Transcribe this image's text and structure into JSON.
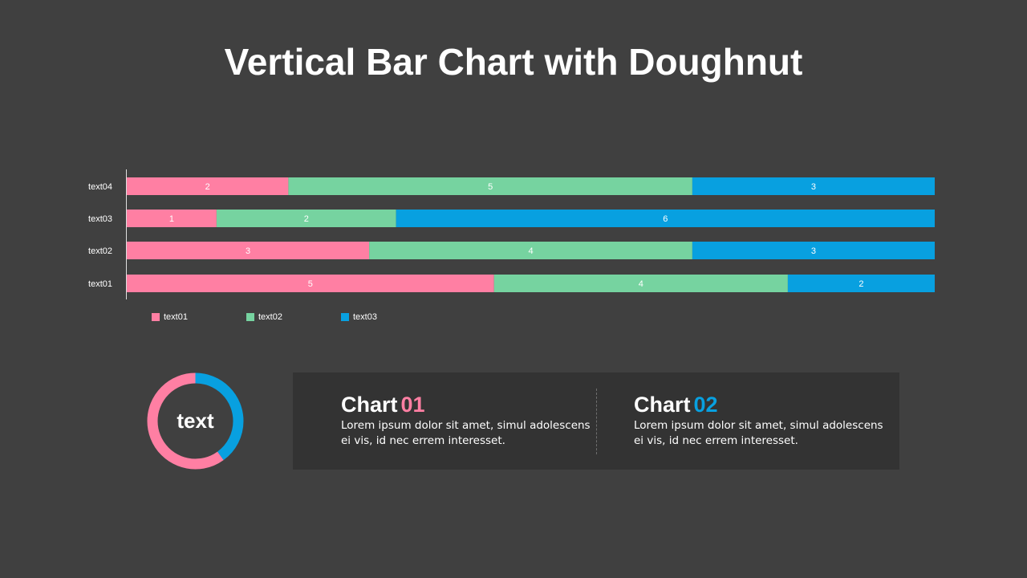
{
  "page": {
    "title": "Vertical Bar Chart with Doughnut"
  },
  "colors": {
    "background": "#404040",
    "panel": "#333333",
    "pink": "#FF7FA3",
    "green": "#76D3A0",
    "blue": "#08A0E0"
  },
  "chart_data": [
    {
      "type": "bar",
      "orientation": "horizontal",
      "stacked": true,
      "normalized_100_percent": true,
      "categories": [
        "text01",
        "text02",
        "text03",
        "text04"
      ],
      "series": [
        {
          "name": "text01",
          "color": "#FF7FA3",
          "values": [
            5,
            3,
            1,
            2
          ]
        },
        {
          "name": "text02",
          "color": "#76D3A0",
          "values": [
            4,
            4,
            2,
            5
          ]
        },
        {
          "name": "text03",
          "color": "#08A0E0",
          "values": [
            2,
            3,
            6,
            3
          ]
        }
      ],
      "data_labels": true,
      "grid": false,
      "legend_position": "bottom-left"
    },
    {
      "type": "pie",
      "doughnut": true,
      "center_label": "text",
      "slices": [
        {
          "value": 40,
          "color": "#08A0E0"
        },
        {
          "value": 60,
          "color": "#FF7FA3"
        }
      ]
    }
  ],
  "cards": [
    {
      "title_word": "Chart",
      "title_number": "01",
      "number_color": "#FF7FA3",
      "text": "Lorem ipsum dolor sit amet, simul adolescens ei vis, id nec errem interesset."
    },
    {
      "title_word": "Chart",
      "title_number": "02",
      "number_color": "#08A0E0",
      "text": "Lorem ipsum dolor sit amet, simul adolescens ei vis, id nec errem interesset."
    }
  ]
}
